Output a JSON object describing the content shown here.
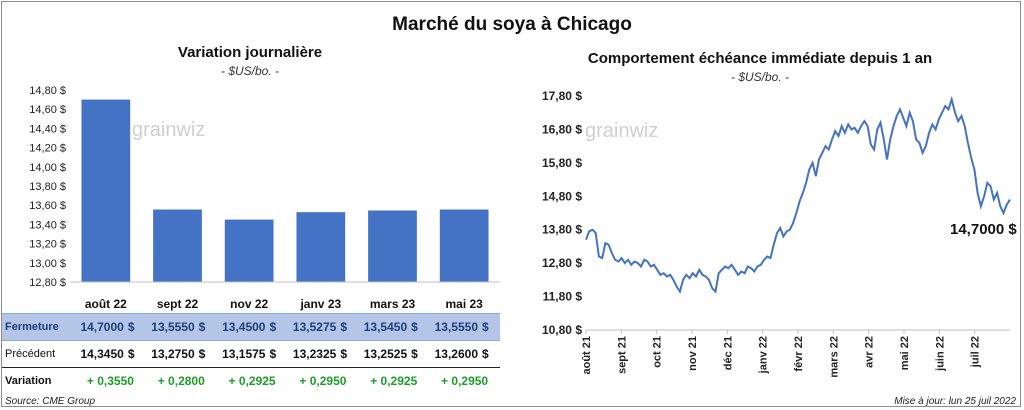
{
  "main_title": "Marché du soya à Chicago",
  "left": {
    "title": "Variation journalière",
    "subtitle": "- $US/bo. -",
    "watermark": "grainwiz",
    "table": {
      "row_labels": [
        "Fermeture",
        "Précédent",
        "Variation"
      ],
      "currency": "$",
      "closing": [
        "14,7000",
        "13,5550",
        "13,4500",
        "13,5275",
        "13,5450",
        "13,5550"
      ],
      "previous": [
        "14,3450",
        "13,2750",
        "13,1575",
        "13,2325",
        "13,2525",
        "13,2600"
      ],
      "variation": [
        "+ 0,3550",
        "+ 0,2800",
        "+ 0,2925",
        "+ 0,2950",
        "+ 0,2925",
        "+ 0,2950"
      ]
    },
    "source": "Source: CME Group"
  },
  "right": {
    "title": "Comportement  échéance immédiate depuis 1 an",
    "subtitle": "- $US/bo. -",
    "watermark": "grainwiz",
    "last_value_label": "14,7000 $",
    "updated": "Mise à jour: lun 25 juil 2022"
  },
  "chart_data": [
    {
      "type": "bar",
      "title": "Variation journalière",
      "subtitle": "- $US/bo. -",
      "categories": [
        "août 22",
        "sept 22",
        "nov 22",
        "janv 23",
        "mars 23",
        "mai 23"
      ],
      "values": [
        14.7,
        13.555,
        13.45,
        13.5275,
        13.545,
        13.555
      ],
      "ylim": [
        12.8,
        14.8
      ],
      "yticks": [
        "12,80 $",
        "13,00 $",
        "13,20 $",
        "13,40 $",
        "13,60 $",
        "13,80 $",
        "14,00 $",
        "14,20 $",
        "14,40 $",
        "14,60 $",
        "14,80 $"
      ],
      "color": "#4472c4",
      "grid": false
    },
    {
      "type": "line",
      "title": "Comportement  échéance immédiate depuis 1 an",
      "subtitle": "- $US/bo. -",
      "ylim": [
        10.8,
        17.8
      ],
      "yticks": [
        "10,80 $",
        "11,80 $",
        "12,80 $",
        "13,80 $",
        "14,80 $",
        "15,80 $",
        "16,80 $",
        "17,80 $"
      ],
      "xticks": [
        "août 21",
        "sept 21",
        "oct 21",
        "nov 21",
        "déc 21",
        "janv 22",
        "févr 22",
        "mars 22",
        "avr 22",
        "mai 22",
        "juin 22",
        "juil 22"
      ],
      "color": "#4472c4",
      "grid": false,
      "values": [
        13.5,
        13.75,
        13.8,
        13.7,
        13.0,
        12.95,
        13.4,
        13.35,
        13.1,
        12.9,
        12.85,
        12.95,
        12.8,
        12.9,
        12.75,
        12.85,
        12.8,
        12.7,
        12.9,
        12.85,
        12.7,
        12.75,
        12.6,
        12.45,
        12.5,
        12.4,
        12.45,
        12.3,
        12.1,
        11.95,
        12.3,
        12.45,
        12.35,
        12.5,
        12.4,
        12.6,
        12.45,
        12.4,
        12.3,
        12.05,
        11.95,
        12.5,
        12.6,
        12.7,
        12.65,
        12.75,
        12.6,
        12.45,
        12.55,
        12.5,
        12.7,
        12.65,
        12.55,
        12.7,
        12.75,
        12.9,
        13.0,
        12.95,
        13.35,
        13.7,
        13.85,
        13.6,
        13.75,
        13.8,
        14.0,
        14.3,
        14.65,
        14.9,
        15.2,
        15.6,
        15.8,
        15.4,
        15.9,
        16.1,
        16.3,
        16.2,
        16.5,
        16.75,
        16.6,
        16.9,
        16.7,
        16.95,
        16.8,
        16.85,
        16.7,
        16.9,
        17.05,
        16.9,
        16.35,
        16.2,
        16.8,
        17.0,
        16.5,
        15.9,
        16.5,
        16.9,
        17.2,
        17.4,
        17.15,
        16.9,
        17.3,
        17.05,
        16.5,
        16.4,
        16.1,
        16.3,
        16.7,
        16.95,
        16.8,
        17.1,
        17.3,
        17.5,
        17.4,
        17.7,
        17.3,
        17.05,
        17.2,
        16.9,
        16.4,
        15.95,
        15.6,
        14.9,
        14.5,
        14.8,
        15.2,
        15.1,
        14.7,
        14.9,
        14.5,
        14.3,
        14.55,
        14.7
      ]
    }
  ]
}
